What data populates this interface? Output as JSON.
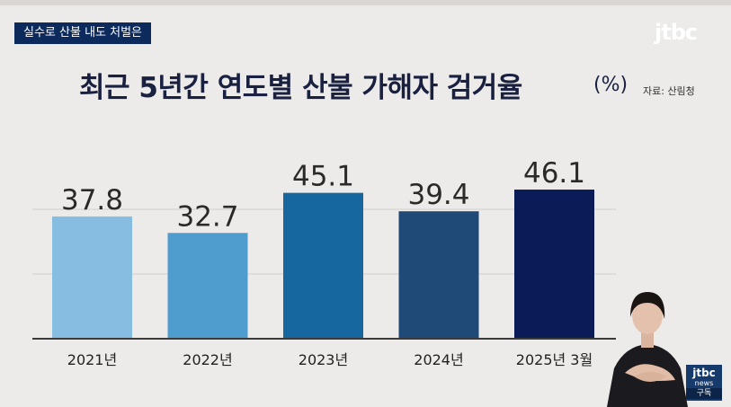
{
  "header": {
    "tag": "실수로 산불 내도 처벌은",
    "logo": "jtbc"
  },
  "chart_data": {
    "type": "bar",
    "title": "최근 5년간 연도별 산불 가해자 검거율",
    "unit": "(%)",
    "source": "자료: 산림청",
    "categories": [
      "2021년",
      "2022년",
      "2023년",
      "2024년",
      "2025년 3월"
    ],
    "values": [
      37.8,
      32.7,
      45.1,
      39.4,
      46.1
    ],
    "value_labels": [
      "37.8",
      "32.7",
      "45.1",
      "39.4",
      "46.1"
    ],
    "colors": [
      "#86bde0",
      "#4f9ccf",
      "#16679f",
      "#1f4a78",
      "#0b1b58"
    ],
    "ylim": [
      0,
      60
    ],
    "grid": true
  },
  "badge": {
    "line1": "jtbc",
    "line2": "news",
    "line3": "구독"
  }
}
